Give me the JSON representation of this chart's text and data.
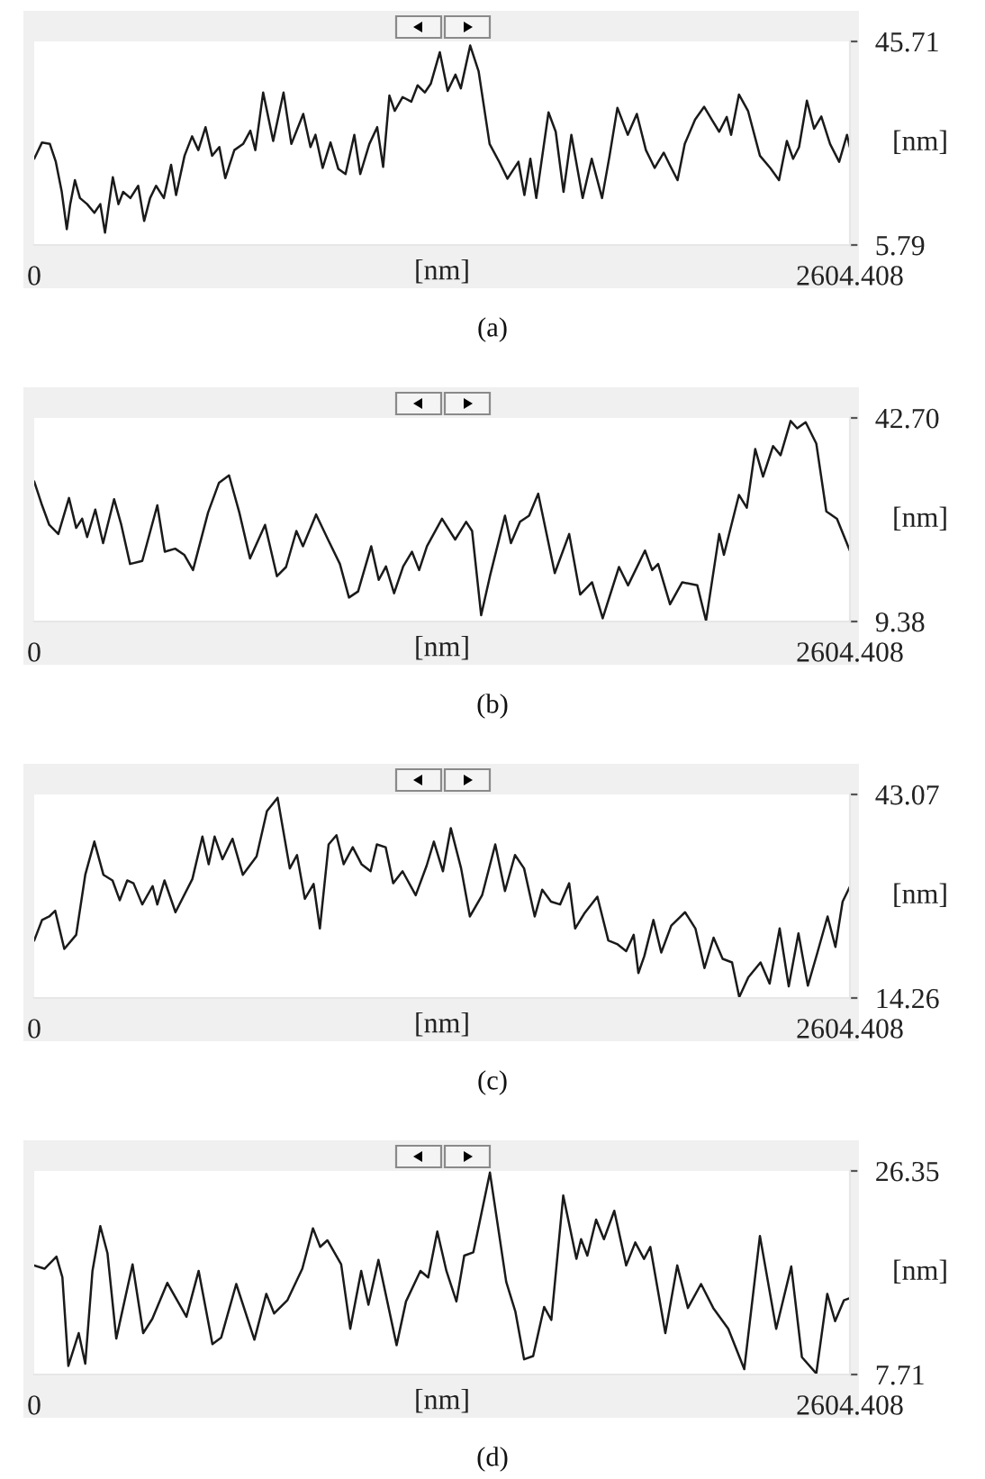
{
  "chart_data": [
    {
      "type": "line",
      "xlabel": "[nm]",
      "ylabel": "[nm]",
      "xlim": [
        0,
        2604.408
      ],
      "xticks": [
        0,
        2604.408
      ],
      "ylim": [
        5.79,
        45.71
      ],
      "yticks": [
        5.79,
        45.71
      ],
      "annotations": [
        "(a)"
      ],
      "x": [
        0,
        25,
        50,
        69,
        88,
        104,
        115,
        130,
        146,
        169,
        192,
        211,
        226,
        236,
        251,
        269,
        284,
        307,
        332,
        351,
        370,
        389,
        414,
        437,
        453,
        480,
        504,
        524,
        547,
        568,
        591,
        610,
        639,
        667,
        690,
        706,
        731,
        763,
        796,
        821,
        859,
        882,
        898,
        921,
        946,
        971,
        994,
        1022,
        1041,
        1070,
        1095,
        1114,
        1134,
        1151,
        1176,
        1204,
        1224,
        1247,
        1266,
        1295,
        1320,
        1345,
        1362,
        1392,
        1419,
        1454,
        1483,
        1511,
        1546,
        1565,
        1584,
        1603,
        1642,
        1665,
        1690,
        1715,
        1751,
        1780,
        1813,
        1837,
        1862,
        1895,
        1924,
        1953,
        1981,
        2010,
        2029,
        2054,
        2077,
        2110,
        2139,
        2163,
        2187,
        2211,
        2225,
        2250,
        2279,
        2317,
        2350,
        2378,
        2403,
        2423,
        2442,
        2467,
        2490,
        2513,
        2541,
        2570,
        2595,
        2604
      ],
      "series": [
        {
          "color": "#1a1a1a",
          "values": [
            22.7,
            25.9,
            25.6,
            22.1,
            16.2,
            8.9,
            13.8,
            18.5,
            15.0,
            13.8,
            12.1,
            13.8,
            8.2,
            12.6,
            19.1,
            13.8,
            16.2,
            15.0,
            17.4,
            10.5,
            15.0,
            17.4,
            15.0,
            21.5,
            15.6,
            23.3,
            27.1,
            24.4,
            28.9,
            23.3,
            25.0,
            18.9,
            24.4,
            25.6,
            28.2,
            24.4,
            35.7,
            26.2,
            35.7,
            25.6,
            31.5,
            25.0,
            27.4,
            20.9,
            25.9,
            20.7,
            19.7,
            27.4,
            19.7,
            25.6,
            28.9,
            21.1,
            35.1,
            32.1,
            34.8,
            33.9,
            37.1,
            35.7,
            37.4,
            43.6,
            36.0,
            39.2,
            36.5,
            44.9,
            39.8,
            25.6,
            22.3,
            18.8,
            22.1,
            15.6,
            22.7,
            15.0,
            31.8,
            28.0,
            16.2,
            27.4,
            15.0,
            22.7,
            15.0,
            23.3,
            32.7,
            27.4,
            31.5,
            24.4,
            20.9,
            23.9,
            21.5,
            18.5,
            25.6,
            30.4,
            32.9,
            30.4,
            28.0,
            30.9,
            27.4,
            35.3,
            32.1,
            23.3,
            20.9,
            18.5,
            26.2,
            22.7,
            25.0,
            34.1,
            28.6,
            31.0,
            25.6,
            22.1,
            27.4,
            25.0
          ]
        }
      ]
    },
    {
      "type": "line",
      "xlabel": "[nm]",
      "ylabel": "[nm]",
      "xlim": [
        0,
        2604.408
      ],
      "xticks": [
        0,
        2604.408
      ],
      "ylim": [
        9.38,
        42.7
      ],
      "yticks": [
        9.38,
        {
          "value": 42.7,
          "label": "42.70"
        }
      ],
      "annotations": [
        "(b)"
      ],
      "x": [
        0,
        23,
        48,
        77,
        111,
        134,
        153,
        169,
        195,
        220,
        255,
        278,
        306,
        345,
        393,
        417,
        450,
        479,
        507,
        555,
        590,
        622,
        655,
        689,
        737,
        775,
        804,
        837,
        858,
        900,
        938,
        976,
        1005,
        1034,
        1076,
        1100,
        1123,
        1149,
        1178,
        1206,
        1229,
        1254,
        1302,
        1344,
        1379,
        1398,
        1427,
        1455,
        1503,
        1522,
        1551,
        1580,
        1609,
        1662,
        1708,
        1743,
        1781,
        1815,
        1867,
        1896,
        1950,
        1973,
        1992,
        2030,
        2069,
        2117,
        2145,
        2187,
        2202,
        2250,
        2275,
        2302,
        2327,
        2359,
        2383,
        2415,
        2436,
        2463,
        2497,
        2529,
        2563,
        2604
      ],
      "series": [
        {
          "color": "#1a1a1a",
          "values": [
            32.3,
            28.7,
            25.2,
            23.7,
            29.6,
            24.7,
            26.2,
            23.2,
            27.7,
            22.2,
            29.4,
            25.2,
            18.8,
            19.3,
            28.4,
            20.8,
            21.3,
            20.3,
            17.8,
            27.2,
            32.1,
            33.3,
            27.2,
            19.7,
            25.2,
            16.8,
            18.3,
            24.2,
            21.7,
            26.9,
            22.8,
            18.8,
            13.3,
            14.3,
            21.7,
            16.2,
            18.4,
            14.0,
            18.4,
            20.8,
            17.8,
            21.7,
            26.2,
            22.8,
            25.7,
            24.2,
            10.4,
            16.8,
            26.7,
            22.2,
            25.7,
            26.7,
            30.3,
            17.3,
            23.7,
            13.8,
            15.8,
            9.9,
            18.3,
            15.3,
            21.0,
            17.8,
            18.8,
            12.2,
            15.8,
            15.3,
            9.5,
            23.7,
            20.3,
            30.1,
            28.0,
            37.6,
            33.1,
            38.1,
            36.6,
            42.2,
            41.0,
            42.0,
            38.5,
            27.4,
            26.2,
            21.0
          ]
        }
      ]
    },
    {
      "type": "line",
      "xlabel": "[nm]",
      "ylabel": "[nm]",
      "xlim": [
        0,
        2604.408
      ],
      "xticks": [
        0,
        2604.408
      ],
      "ylim": [
        14.26,
        43.07
      ],
      "yticks": [
        14.26,
        43.07
      ],
      "annotations": [
        "(c)"
      ],
      "x": [
        0,
        25,
        48,
        67,
        96,
        134,
        163,
        192,
        221,
        250,
        273,
        297,
        317,
        345,
        378,
        393,
        416,
        451,
        505,
        537,
        557,
        576,
        601,
        633,
        666,
        710,
        743,
        777,
        816,
        839,
        864,
        892,
        912,
        940,
        965,
        988,
        1017,
        1045,
        1074,
        1094,
        1122,
        1146,
        1176,
        1218,
        1253,
        1276,
        1305,
        1330,
        1363,
        1391,
        1430,
        1472,
        1503,
        1535,
        1564,
        1598,
        1622,
        1650,
        1679,
        1708,
        1727,
        1756,
        1798,
        1833,
        1861,
        1890,
        1914,
        1929,
        1948,
        1977,
        2002,
        2034,
        2078,
        2111,
        2140,
        2169,
        2198,
        2228,
        2251,
        2280,
        2319,
        2348,
        2380,
        2409,
        2440,
        2470,
        2500,
        2533,
        2558,
        2581,
        2604
      ],
      "series": [
        {
          "color": "#1a1a1a",
          "values": [
            22.4,
            25.3,
            25.8,
            26.6,
            21.2,
            23.2,
            31.7,
            36.4,
            31.7,
            30.9,
            28.1,
            30.9,
            30.5,
            27.5,
            30.1,
            27.5,
            30.9,
            26.4,
            31.1,
            37.1,
            33.2,
            37.1,
            33.9,
            36.8,
            31.7,
            34.3,
            40.7,
            42.6,
            32.6,
            34.5,
            28.3,
            30.4,
            24.1,
            36.0,
            37.3,
            33.2,
            35.6,
            33.2,
            32.2,
            36.0,
            35.6,
            30.5,
            32.2,
            28.8,
            33.0,
            36.4,
            32.2,
            38.3,
            32.6,
            25.8,
            28.8,
            36.0,
            29.4,
            34.5,
            32.6,
            25.8,
            29.6,
            27.9,
            27.5,
            30.5,
            24.1,
            26.2,
            28.6,
            22.4,
            21.9,
            20.9,
            23.2,
            17.8,
            20.2,
            25.3,
            20.7,
            24.5,
            26.4,
            24.1,
            18.5,
            22.8,
            19.8,
            19.3,
            14.4,
            17.2,
            19.3,
            16.3,
            24.1,
            15.9,
            23.4,
            16.0,
            20.6,
            25.8,
            21.5,
            27.9,
            30.0
          ]
        }
      ]
    },
    {
      "type": "line",
      "xlabel": "[nm]",
      "ylabel": "[nm]",
      "xlim": [
        0,
        2604.408
      ],
      "xticks": [
        0,
        2604.408
      ],
      "ylim": [
        7.71,
        26.35
      ],
      "yticks": [
        7.71,
        26.35
      ],
      "annotations": [
        "(d)"
      ],
      "x": [
        0,
        33,
        71,
        90,
        109,
        142,
        163,
        186,
        211,
        234,
        262,
        314,
        348,
        377,
        425,
        486,
        525,
        569,
        597,
        645,
        703,
        741,
        766,
        808,
        856,
        890,
        913,
        936,
        980,
        1009,
        1044,
        1067,
        1099,
        1157,
        1187,
        1233,
        1258,
        1287,
        1316,
        1348,
        1373,
        1402,
        1455,
        1507,
        1536,
        1564,
        1593,
        1628,
        1651,
        1689,
        1731,
        1746,
        1766,
        1794,
        1819,
        1852,
        1890,
        1919,
        1947,
        1967,
        2015,
        2053,
        2087,
        2129,
        2168,
        2216,
        2267,
        2317,
        2369,
        2417,
        2451,
        2497,
        2532,
        2557,
        2585,
        2604
      ],
      "series": [
        {
          "color": "#1a1a1a",
          "values": [
            17.7,
            17.4,
            18.5,
            16.6,
            8.5,
            11.5,
            8.7,
            17.2,
            21.3,
            18.8,
            11.0,
            17.8,
            11.5,
            12.8,
            16.1,
            13.0,
            17.2,
            10.5,
            11.1,
            16.0,
            10.9,
            15.1,
            13.3,
            14.5,
            17.4,
            21.1,
            19.4,
            20.0,
            17.8,
            11.9,
            17.2,
            14.1,
            18.2,
            10.4,
            14.4,
            17.2,
            16.6,
            20.8,
            17.2,
            14.4,
            18.6,
            18.9,
            26.2,
            16.2,
            13.5,
            9.1,
            9.4,
            13.9,
            12.7,
            24.1,
            18.3,
            20.1,
            18.6,
            21.9,
            20.1,
            22.7,
            17.7,
            19.8,
            18.3,
            19.4,
            11.5,
            17.7,
            13.8,
            16.0,
            13.8,
            11.9,
            8.2,
            20.4,
            11.9,
            17.6,
            9.3,
            7.8,
            15.1,
            12.6,
            14.5,
            14.7
          ]
        }
      ]
    }
  ]
}
